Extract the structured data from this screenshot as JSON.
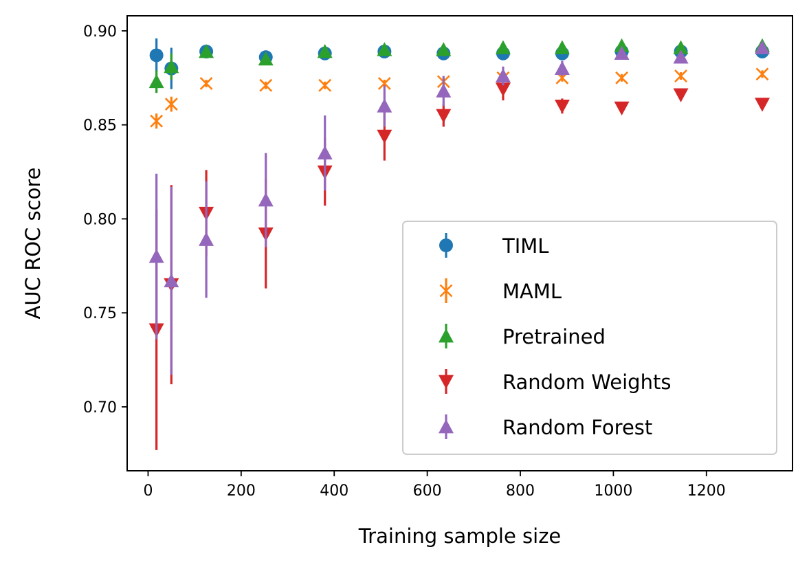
{
  "chart_data": {
    "type": "scatter",
    "title": "",
    "xlabel": "Training sample size",
    "ylabel": "AUC ROC score",
    "xlim": [
      -45,
      1385
    ],
    "ylim": [
      0.666,
      0.908
    ],
    "xticks": [
      0,
      200,
      400,
      600,
      800,
      1000,
      1200
    ],
    "xtick_labels": [
      "0",
      "200",
      "400",
      "600",
      "800",
      "1000",
      "1200"
    ],
    "yticks": [
      0.7,
      0.75,
      0.8,
      0.85,
      0.9
    ],
    "ytick_labels": [
      "0.70",
      "0.75",
      "0.80",
      "0.85",
      "0.90"
    ],
    "grid": false,
    "legend_position": "lower-right",
    "x": [
      18,
      50,
      125,
      253,
      380,
      508,
      635,
      763,
      890,
      1018,
      1145,
      1320
    ],
    "series": [
      {
        "name": "TIML",
        "marker": "circle",
        "color": "#1f77b4",
        "values": [
          0.887,
          0.88,
          0.889,
          0.886,
          0.888,
          0.889,
          0.888,
          0.888,
          0.888,
          0.889,
          0.889,
          0.889
        ],
        "errors": [
          0.009,
          0.011,
          0.002,
          0.002,
          0.002,
          0.002,
          0.002,
          0.002,
          0.002,
          0.002,
          0.002,
          0.002
        ]
      },
      {
        "name": "MAML",
        "marker": "x",
        "color": "#ff7f0e",
        "values": [
          0.852,
          0.861,
          0.872,
          0.871,
          0.871,
          0.872,
          0.873,
          0.875,
          0.875,
          0.875,
          0.876,
          0.877
        ],
        "errors": [
          0.004,
          0.004,
          0.002,
          0.002,
          0.002,
          0.002,
          0.002,
          0.002,
          0.002,
          0.002,
          0.002,
          0.002
        ]
      },
      {
        "name": "Pretrained",
        "marker": "triangle-up",
        "color": "#2ca02c",
        "values": [
          0.873,
          0.881,
          0.889,
          0.885,
          0.889,
          0.89,
          0.89,
          0.891,
          0.891,
          0.892,
          0.891,
          0.892
        ],
        "errors": [
          0.006,
          0.007,
          0.002,
          0.002,
          0.002,
          0.002,
          0.002,
          0.002,
          0.002,
          0.002,
          0.002,
          0.002
        ]
      },
      {
        "name": "Random Weights",
        "marker": "triangle-down",
        "color": "#d62728",
        "values": [
          0.741,
          0.765,
          0.803,
          0.792,
          0.825,
          0.844,
          0.855,
          0.869,
          0.86,
          0.859,
          0.866,
          0.861
        ],
        "errors": [
          0.064,
          0.053,
          0.023,
          0.029,
          0.018,
          0.013,
          0.006,
          0.006,
          0.004,
          0.002,
          0.003,
          0.002
        ]
      },
      {
        "name": "Random Forest",
        "marker": "triangle-up",
        "color": "#9467bd",
        "values": [
          0.78,
          0.767,
          0.789,
          0.81,
          0.835,
          0.86,
          0.868,
          0.876,
          0.88,
          0.888,
          0.886,
          0.891
        ],
        "errors": [
          0.044,
          0.05,
          0.031,
          0.025,
          0.02,
          0.011,
          0.008,
          0.005,
          0.004,
          0.003,
          0.003,
          0.002
        ]
      }
    ]
  }
}
